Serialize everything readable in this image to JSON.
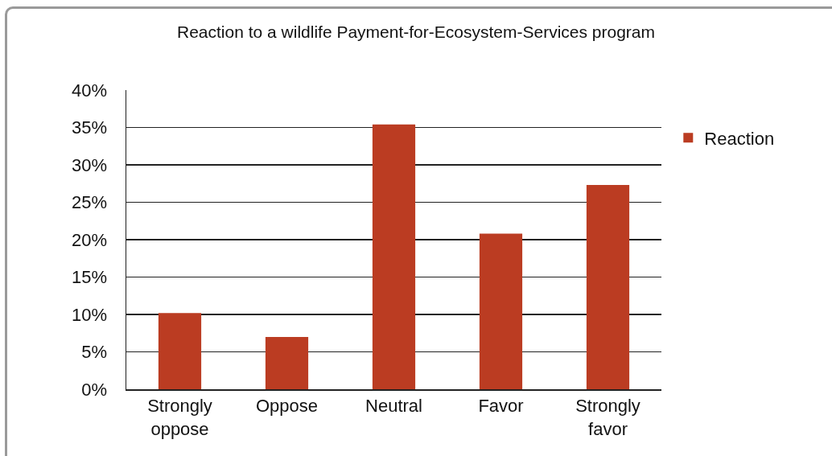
{
  "chart_data": {
    "type": "bar",
    "title": "Reaction to a wildlife Payment-for-Ecosystem-Services program",
    "categories": [
      "Strongly oppose",
      "Oppose",
      "Neutral",
      "Favor",
      "Strongly favor"
    ],
    "series": [
      {
        "name": "Reaction",
        "color": "#bb3c22",
        "values": [
          10.2,
          7.0,
          35.4,
          20.8,
          27.3
        ]
      }
    ],
    "ylim": [
      0,
      40
    ],
    "yticks": [
      {
        "value": 0,
        "label": "0%"
      },
      {
        "value": 5,
        "label": "5%"
      },
      {
        "value": 10,
        "label": "10%"
      },
      {
        "value": 15,
        "label": "15%"
      },
      {
        "value": 20,
        "label": "20%"
      },
      {
        "value": 25,
        "label": "25%"
      },
      {
        "value": 30,
        "label": "30%"
      },
      {
        "value": 35,
        "label": "35%"
      },
      {
        "value": 40,
        "label": "40%"
      }
    ],
    "grid": "y",
    "legend": "right"
  }
}
